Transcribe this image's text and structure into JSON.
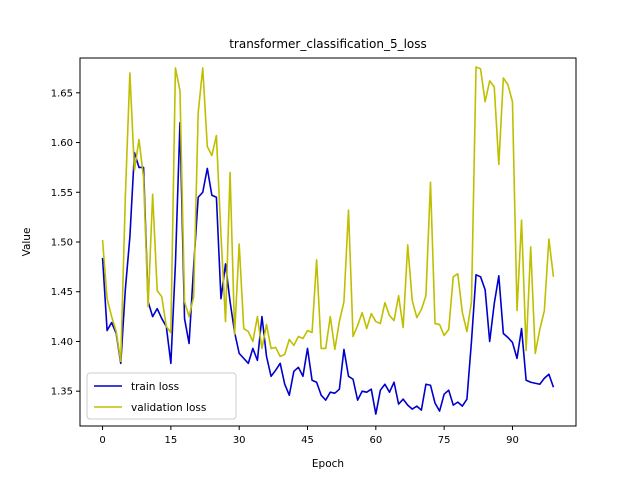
{
  "chart_data": {
    "type": "line",
    "title": "transformer_classification_5_loss",
    "xlabel": "Epoch",
    "ylabel": "Value",
    "xlim": [
      -4.95,
      103.95
    ],
    "ylim": [
      1.315,
      1.685
    ],
    "xticks": [
      0,
      15,
      30,
      45,
      60,
      75,
      90
    ],
    "yticks": [
      1.35,
      1.4,
      1.45,
      1.5,
      1.55,
      1.6,
      1.65
    ],
    "ytick_labels": [
      "1.35",
      "1.40",
      "1.45",
      "1.50",
      "1.55",
      "1.60",
      "1.65"
    ],
    "grid": false,
    "legend_position": "lower-left",
    "series": [
      {
        "name": "train loss",
        "color": "#0000cc",
        "values": [
          1.484,
          1.411,
          1.419,
          1.408,
          1.378,
          1.452,
          1.505,
          1.59,
          1.575,
          1.575,
          1.44,
          1.425,
          1.433,
          1.423,
          1.415,
          1.378,
          1.478,
          1.62,
          1.423,
          1.398,
          1.475,
          1.545,
          1.55,
          1.574,
          1.547,
          1.545,
          1.443,
          1.478,
          1.44,
          1.409,
          1.388,
          1.383,
          1.378,
          1.393,
          1.381,
          1.425,
          1.385,
          1.365,
          1.371,
          1.378,
          1.357,
          1.346,
          1.37,
          1.374,
          1.365,
          1.393,
          1.361,
          1.359,
          1.346,
          1.341,
          1.349,
          1.348,
          1.352,
          1.392,
          1.365,
          1.362,
          1.341,
          1.35,
          1.349,
          1.352,
          1.327,
          1.351,
          1.357,
          1.349,
          1.359,
          1.337,
          1.342,
          1.336,
          1.332,
          1.335,
          1.331,
          1.357,
          1.356,
          1.338,
          1.33,
          1.347,
          1.351,
          1.336,
          1.339,
          1.335,
          1.342,
          1.4,
          1.467,
          1.465,
          1.452,
          1.4,
          1.438,
          1.466,
          1.408,
          1.404,
          1.399,
          1.383,
          1.413,
          1.361,
          1.359,
          1.358,
          1.357,
          1.363,
          1.367,
          1.354
        ]
      },
      {
        "name": "validation loss",
        "color": "#bfbf00",
        "values": [
          1.502,
          1.443,
          1.425,
          1.41,
          1.38,
          1.545,
          1.67,
          1.572,
          1.603,
          1.565,
          1.435,
          1.548,
          1.451,
          1.445,
          1.415,
          1.409,
          1.675,
          1.652,
          1.44,
          1.425,
          1.445,
          1.63,
          1.675,
          1.596,
          1.587,
          1.607,
          1.507,
          1.42,
          1.57,
          1.407,
          1.498,
          1.413,
          1.41,
          1.4,
          1.425,
          1.393,
          1.417,
          1.393,
          1.394,
          1.385,
          1.387,
          1.402,
          1.396,
          1.405,
          1.403,
          1.411,
          1.409,
          1.482,
          1.393,
          1.393,
          1.425,
          1.392,
          1.42,
          1.44,
          1.532,
          1.405,
          1.416,
          1.429,
          1.413,
          1.428,
          1.42,
          1.418,
          1.439,
          1.426,
          1.421,
          1.446,
          1.414,
          1.497,
          1.441,
          1.424,
          1.432,
          1.446,
          1.56,
          1.418,
          1.417,
          1.406,
          1.412,
          1.465,
          1.468,
          1.429,
          1.41,
          1.44,
          1.676,
          1.674,
          1.641,
          1.662,
          1.656,
          1.578,
          1.665,
          1.658,
          1.641,
          1.431,
          1.522,
          1.391,
          1.495,
          1.388,
          1.412,
          1.431,
          1.503,
          1.465
        ]
      }
    ]
  }
}
